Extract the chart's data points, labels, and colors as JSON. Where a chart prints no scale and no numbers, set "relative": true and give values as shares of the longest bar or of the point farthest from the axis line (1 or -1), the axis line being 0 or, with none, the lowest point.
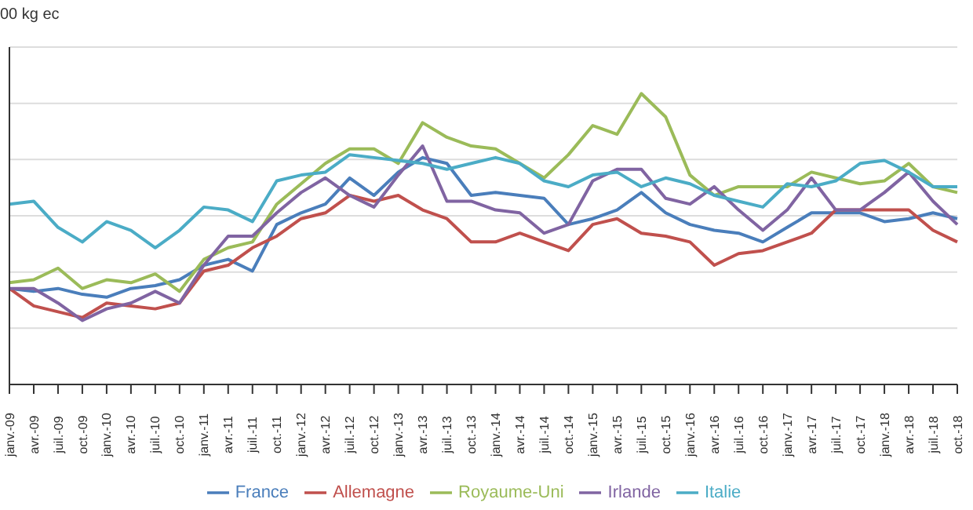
{
  "chart_data": {
    "type": "line",
    "ylabel": "00 kg ec",
    "relative": true,
    "grid": "y",
    "legend": "bottom",
    "marker": "none",
    "line_style": "solid",
    "categories": [
      "janv.-09",
      "avr.-09",
      "juil.-09",
      "oct.-09",
      "janv.-10",
      "avr.-10",
      "juil.-10",
      "oct.-10",
      "janv.-11",
      "avr.-11",
      "juil.-11",
      "oct.-11",
      "janv.-12",
      "avr.-12",
      "juil.-12",
      "oct.-12",
      "janv.-13",
      "avr.-13",
      "juil.-13",
      "oct.-13",
      "janv.-14",
      "avr.-14",
      "juil.-14",
      "oct.-14",
      "janv.-15",
      "avr.-15",
      "juil.-15",
      "oct.-15",
      "janv.-16",
      "avr.-16",
      "juil.-16",
      "oct.-16",
      "janv.-17",
      "avr.-17",
      "juil.-17",
      "oct.-17",
      "janv.-18",
      "avr.-18",
      "juil.-18",
      "oct.-18"
    ],
    "series": [
      {
        "name": "France",
        "color": "#4a7ebb",
        "values": [
          0.33,
          0.32,
          0.33,
          0.31,
          0.3,
          0.33,
          0.34,
          0.36,
          0.41,
          0.43,
          0.39,
          0.55,
          0.59,
          0.62,
          0.71,
          0.65,
          0.73,
          0.78,
          0.76,
          0.65,
          0.66,
          0.65,
          0.64,
          0.55,
          0.57,
          0.6,
          0.66,
          0.59,
          0.55,
          0.53,
          0.52,
          0.49,
          0.54,
          0.59,
          0.59,
          0.59,
          0.56,
          0.57,
          0.59,
          0.57
        ]
      },
      {
        "name": "Allemagne",
        "color": "#c0504d",
        "values": [
          0.33,
          0.27,
          0.25,
          0.23,
          0.28,
          0.27,
          0.26,
          0.28,
          0.39,
          0.41,
          0.47,
          0.51,
          0.57,
          0.59,
          0.65,
          0.63,
          0.65,
          0.6,
          0.57,
          0.49,
          0.49,
          0.52,
          0.49,
          0.46,
          0.55,
          0.57,
          0.52,
          0.51,
          0.49,
          0.41,
          0.45,
          0.46,
          0.49,
          0.52,
          0.6,
          0.6,
          0.6,
          0.6,
          0.53,
          0.49
        ]
      },
      {
        "name": "Royaume-Uni",
        "color": "#9bbb59",
        "values": [
          0.35,
          0.36,
          0.4,
          0.33,
          0.36,
          0.35,
          0.38,
          0.32,
          0.43,
          0.47,
          0.49,
          0.62,
          0.69,
          0.76,
          0.81,
          0.81,
          0.76,
          0.9,
          0.85,
          0.82,
          0.81,
          0.76,
          0.71,
          0.79,
          0.89,
          0.86,
          1,
          0.92,
          0.72,
          0.65,
          0.68,
          0.68,
          0.68,
          0.73,
          0.71,
          0.69,
          0.7,
          0.76,
          0.68,
          0.66
        ]
      },
      {
        "name": "Irlande",
        "color": "#8064a2",
        "values": [
          0.33,
          0.33,
          0.28,
          0.22,
          0.26,
          0.28,
          0.32,
          0.28,
          0.41,
          0.51,
          0.51,
          0.59,
          0.66,
          0.71,
          0.65,
          0.61,
          0.72,
          0.82,
          0.63,
          0.63,
          0.6,
          0.59,
          0.52,
          0.55,
          0.7,
          0.74,
          0.74,
          0.64,
          0.62,
          0.68,
          0.6,
          0.53,
          0.6,
          0.71,
          0.6,
          0.6,
          0.66,
          0.73,
          0.63,
          0.55
        ]
      },
      {
        "name": "Italie",
        "color": "#4bacc6",
        "values": [
          0.62,
          0.63,
          0.54,
          0.49,
          0.56,
          0.53,
          0.47,
          0.53,
          0.61,
          0.6,
          0.56,
          0.7,
          0.72,
          0.73,
          0.79,
          0.78,
          0.77,
          0.76,
          0.74,
          0.76,
          0.78,
          0.76,
          0.7,
          0.68,
          0.72,
          0.73,
          0.68,
          0.71,
          0.69,
          0.65,
          0.63,
          0.61,
          0.69,
          0.68,
          0.7,
          0.76,
          0.77,
          0.73,
          0.68,
          0.68
        ]
      }
    ]
  }
}
